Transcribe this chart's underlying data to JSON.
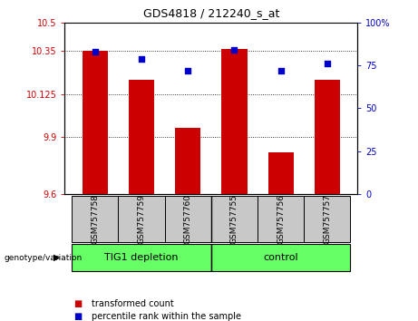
{
  "title": "GDS4818 / 212240_s_at",
  "samples": [
    "GSM757758",
    "GSM757759",
    "GSM757760",
    "GSM757755",
    "GSM757756",
    "GSM757757"
  ],
  "bar_values": [
    10.35,
    10.2,
    9.95,
    10.36,
    9.82,
    10.2
  ],
  "percentile_values": [
    83,
    79,
    72,
    84,
    72,
    76
  ],
  "ylim_left": [
    9.6,
    10.5
  ],
  "ylim_right": [
    0,
    100
  ],
  "yticks_left": [
    9.6,
    9.9,
    10.125,
    10.35,
    10.5
  ],
  "ytick_labels_left": [
    "9.6",
    "9.9",
    "10.125",
    "10.35",
    "10.5"
  ],
  "yticks_right": [
    0,
    25,
    50,
    75,
    100
  ],
  "ytick_labels_right": [
    "0",
    "25",
    "50",
    "75",
    "100%"
  ],
  "bar_color": "#CC0000",
  "dot_color": "#0000CC",
  "bar_width": 0.55,
  "sample_box_color": "#C8C8C8",
  "left_label_color": "#CC0000",
  "right_label_color": "#0000CC",
  "group_color": "#66FF66",
  "genotype_label": "genotype/variation",
  "legend_bar_label": "transformed count",
  "legend_dot_label": "percentile rank within the sample",
  "group1_label": "TIG1 depletion",
  "group2_label": "control"
}
